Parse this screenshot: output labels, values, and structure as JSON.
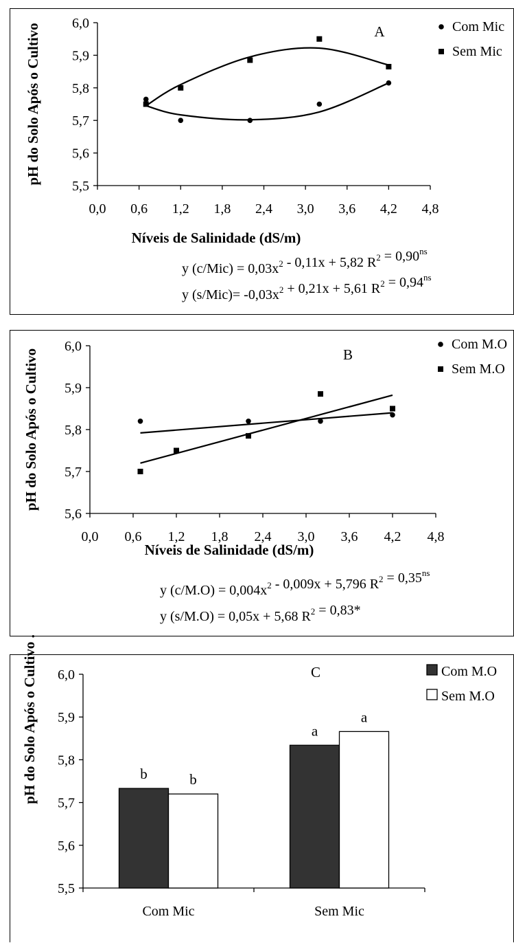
{
  "chart_data": [
    {
      "panel_label": "A",
      "type": "scatter",
      "ylabel": "pH do Solo Após o Cultivo",
      "xlabel": "Níveis de Salinidade (dS/m)",
      "xlim": [
        0.0,
        4.8
      ],
      "ylim": [
        5.5,
        6.0
      ],
      "x_ticks": [
        "0,0",
        "0,6",
        "1,2",
        "1,8",
        "2,4",
        "3,0",
        "3,6",
        "4,2",
        "4,8"
      ],
      "y_ticks": [
        "6,0",
        "5,9",
        "5,8",
        "5,7",
        "5,6",
        "5,5"
      ],
      "legend_position": "top-right",
      "series": [
        {
          "name": "Com Mic",
          "marker": "circle",
          "x": [
            0.7,
            1.2,
            2.2,
            3.2,
            4.2
          ],
          "y": [
            5.765,
            5.7,
            5.7,
            5.75,
            5.815
          ],
          "fit_y": [
            5.745,
            5.717,
            5.702,
            5.726,
            5.815
          ]
        },
        {
          "name": "Sem Mic",
          "marker": "square",
          "x": [
            0.7,
            1.2,
            2.2,
            3.2,
            4.2
          ],
          "y": [
            5.75,
            5.8,
            5.885,
            5.95,
            5.865
          ],
          "fit_y": [
            5.745,
            5.81,
            5.895,
            5.922,
            5.87
          ]
        }
      ],
      "equations": [
        {
          "text": "y (c/Mic) = 0,03x",
          "exp1": "2",
          "mid": " - 0,11x + 5,82 R",
          "exp2": "2",
          "end": " = 0,90",
          "sig": "ns"
        },
        {
          "text": "y (s/Mic)= -0,03x",
          "exp1": "2",
          "mid": " + 0,21x + 5,61 R",
          "exp2": "2",
          "end": " = 0,94",
          "sig": "ns"
        }
      ]
    },
    {
      "panel_label": "B",
      "type": "scatter",
      "ylabel": "pH do Solo Após o Cultivo",
      "xlabel": "Níveis de Salinidade (dS/m)",
      "xlim": [
        0.0,
        4.8
      ],
      "ylim": [
        5.6,
        6.0
      ],
      "x_ticks": [
        "0,0",
        "0,6",
        "1,2",
        "1,8",
        "2,4",
        "3,0",
        "3,6",
        "4,2",
        "4,8"
      ],
      "y_ticks": [
        "6,0",
        "5,9",
        "5,8",
        "5,7",
        "5,6"
      ],
      "legend_position": "top-right",
      "series": [
        {
          "name": "Com M.O",
          "marker": "circle",
          "x": [
            0.7,
            2.2,
            3.2,
            4.2
          ],
          "y": [
            5.82,
            5.82,
            5.82,
            5.835
          ],
          "fit": {
            "x": [
              0.7,
              4.2
            ],
            "y": [
              5.792,
              5.84
            ]
          }
        },
        {
          "name": "Sem M.O",
          "marker": "square",
          "x": [
            0.7,
            1.2,
            2.2,
            3.2,
            4.2
          ],
          "y": [
            5.7,
            5.75,
            5.785,
            5.885,
            5.85
          ],
          "fit": {
            "x": [
              0.7,
              4.2
            ],
            "y": [
              5.72,
              5.882
            ]
          }
        }
      ],
      "equations": [
        {
          "text": "y (c/M.O) = 0,004x",
          "exp1": "2",
          "mid": " - 0,009x + 5,796 R",
          "exp2": "2",
          "end": " = 0,35",
          "sig": "ns"
        },
        {
          "text": "y (s/M.O) = 0,05x + 5,68 R",
          "exp1": "2",
          "mid": " = 0,83*",
          "exp2": "",
          "end": "",
          "sig": ""
        }
      ]
    },
    {
      "panel_label": "C",
      "type": "bar",
      "ylabel": "pH do Solo Após o Cultivo .",
      "categories": [
        "Com Mic",
        "Sem Mic"
      ],
      "ylim": [
        5.5,
        6.0
      ],
      "y_ticks": [
        "6,0",
        "5,9",
        "5,8",
        "5,7",
        "5,6",
        "5,5"
      ],
      "legend_position": "top-right",
      "series": [
        {
          "name": "Com M.O",
          "color": "#333333",
          "values": [
            5.733,
            5.834
          ],
          "letters": [
            "b",
            "a"
          ]
        },
        {
          "name": "Sem M.O",
          "color": "#ffffff",
          "values": [
            5.72,
            5.866
          ],
          "letters": [
            "b",
            "a"
          ]
        }
      ]
    }
  ]
}
